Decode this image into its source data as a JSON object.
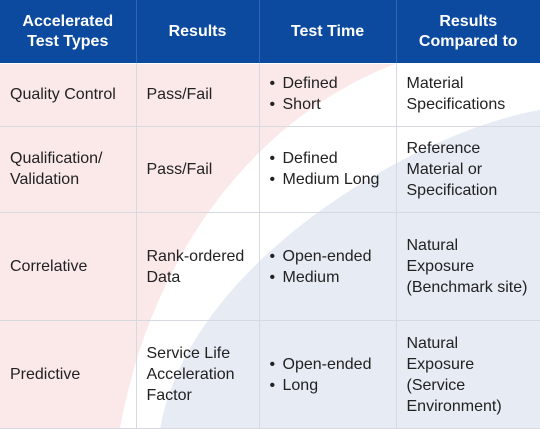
{
  "header": {
    "col1": "Accelerated Test Types",
    "col2": "Results",
    "col3": "Test Time",
    "col4": "Results Compared to"
  },
  "rows": [
    {
      "type": "Quality Control",
      "results": "Pass/Fail",
      "time": [
        "Defined",
        "Short"
      ],
      "compared": "Material Specifications"
    },
    {
      "type": "Qualification/ Validation",
      "results": "Pass/Fail",
      "time": [
        "Defined",
        "Medium Long"
      ],
      "compared": "Reference Material or Specification"
    },
    {
      "type": "Correlative",
      "results": "Rank-ordered Data",
      "time": [
        "Open-ended",
        "Medium"
      ],
      "compared": "Natural Exposure (Benchmark site)"
    },
    {
      "type": "Predictive",
      "results": "Service Life Acceleration Factor",
      "time": [
        "Open-ended",
        "Long"
      ],
      "compared": "Natural Exposure (Service Environment)"
    }
  ],
  "colors": {
    "header_bg": "#0b4a9e",
    "header_text": "#ffffff",
    "pink_swoosh": "#fbe9ea",
    "blue_swoosh": "#e6ebf4"
  }
}
